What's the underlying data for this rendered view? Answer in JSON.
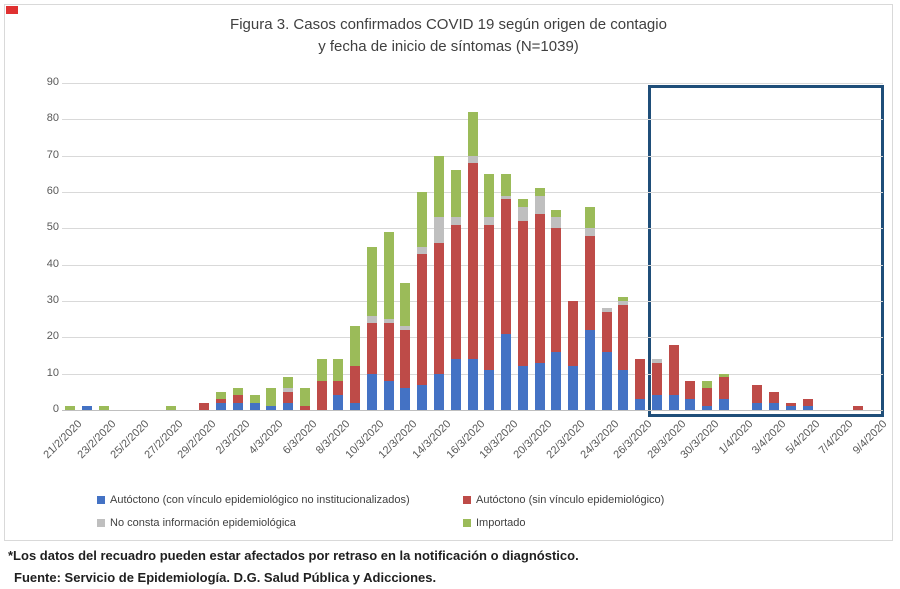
{
  "figure": {
    "title_line1": "Figura 3. Casos confirmados COVID 19 según origen de contagio",
    "title_line2": "y fecha de inicio de síntomas (N=1039)",
    "footnote_line1": "*Los datos del recuadro pueden estar afectados por retraso en la notificación o diagnóstico.",
    "footnote_line2": "Fuente: Servicio de Epidemiología. D.G. Salud Pública y Adicciones."
  },
  "chart_data": {
    "type": "bar",
    "stacked": true,
    "title": "Figura 3. Casos confirmados COVID 19 según origen de contagio y fecha de inicio de síntomas (N=1039)",
    "total_n": 1039,
    "grid": true,
    "ylim": [
      0,
      90
    ],
    "ytick_step": 10,
    "x_label_every": 2,
    "legend_position": "bottom",
    "categories": [
      "21/2/2020",
      "22/2/2020",
      "23/2/2020",
      "24/2/2020",
      "25/2/2020",
      "26/2/2020",
      "27/2/2020",
      "28/2/2020",
      "29/2/2020",
      "1/3/2020",
      "2/3/2020",
      "3/3/2020",
      "4/3/2020",
      "5/3/2020",
      "6/3/2020",
      "7/3/2020",
      "8/3/2020",
      "9/3/2020",
      "10/3/2020",
      "11/3/2020",
      "12/3/2020",
      "13/3/2020",
      "14/3/2020",
      "15/3/2020",
      "16/3/2020",
      "17/3/2020",
      "18/3/2020",
      "19/3/2020",
      "20/3/2020",
      "21/3/2020",
      "22/3/2020",
      "23/3/2020",
      "24/3/2020",
      "25/3/2020",
      "26/3/2020",
      "27/3/2020",
      "28/3/2020",
      "29/3/2020",
      "30/3/2020",
      "31/3/2020",
      "1/4/2020",
      "2/4/2020",
      "3/4/2020",
      "4/4/2020",
      "5/4/2020",
      "6/4/2020",
      "7/4/2020",
      "8/4/2020",
      "9/4/2020"
    ],
    "series": [
      {
        "name": "Autóctono (con vínculo epidemiológico no institucionalizados)",
        "color": "#4472c4",
        "values": [
          0,
          1,
          0,
          0,
          0,
          0,
          0,
          0,
          0,
          2,
          2,
          2,
          1,
          2,
          0,
          0,
          4,
          2,
          10,
          8,
          6,
          7,
          10,
          14,
          14,
          11,
          21,
          12,
          13,
          16,
          12,
          22,
          16,
          11,
          3,
          4,
          4,
          3,
          1,
          3,
          0,
          2,
          2,
          1,
          1,
          0,
          0,
          0,
          0
        ]
      },
      {
        "name": "Autóctono (sin vínculo epidemiológico)",
        "color": "#be4b48",
        "values": [
          0,
          0,
          0,
          0,
          0,
          0,
          0,
          0,
          2,
          1,
          2,
          0,
          0,
          3,
          1,
          8,
          4,
          10,
          14,
          16,
          16,
          36,
          36,
          37,
          54,
          40,
          37,
          40,
          41,
          34,
          18,
          26,
          11,
          18,
          11,
          9,
          14,
          5,
          5,
          6,
          0,
          5,
          3,
          1,
          2,
          0,
          0,
          1,
          0
        ]
      },
      {
        "name": "No consta información epidemiológica",
        "color": "#bfbfbf",
        "values": [
          0,
          0,
          0,
          0,
          0,
          0,
          0,
          0,
          0,
          0,
          0,
          0,
          0,
          1,
          0,
          0,
          0,
          0,
          2,
          1,
          1,
          2,
          7,
          2,
          2,
          2,
          1,
          4,
          5,
          3,
          0,
          2,
          1,
          1,
          0,
          1,
          0,
          0,
          0,
          0,
          0,
          0,
          0,
          0,
          0,
          0,
          0,
          0,
          0
        ]
      },
      {
        "name": "Importado",
        "color": "#9bbb59",
        "values": [
          1,
          0,
          1,
          0,
          0,
          0,
          1,
          0,
          0,
          2,
          2,
          2,
          5,
          3,
          5,
          6,
          6,
          11,
          19,
          24,
          12,
          15,
          17,
          13,
          12,
          12,
          6,
          2,
          2,
          2,
          0,
          6,
          0,
          1,
          0,
          0,
          0,
          0,
          2,
          1,
          0,
          0,
          0,
          0,
          0,
          0,
          0,
          0,
          0
        ]
      }
    ],
    "highlight_box": {
      "start_category": "27/3/2020",
      "end_category": "9/4/2020",
      "border_color": "#1f4e79",
      "meaning": "Los datos del recuadro pueden estar afectados por retraso en la notificación o diagnóstico."
    }
  }
}
